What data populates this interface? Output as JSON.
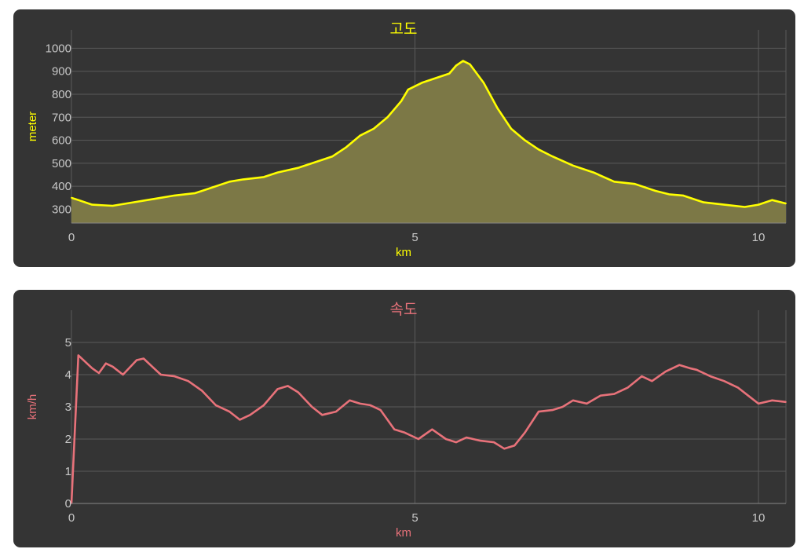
{
  "charts": {
    "elevation": {
      "title": "고도",
      "xlabel": "km",
      "ylabel": "meter",
      "accent": "#ffff00",
      "xticks": [
        "0",
        "5",
        "10"
      ],
      "yticks": [
        "300",
        "400",
        "500",
        "600",
        "700",
        "800",
        "900",
        "1000"
      ]
    },
    "speed": {
      "title": "속도",
      "xlabel": "km",
      "ylabel": "km/h",
      "accent": "#e8727a",
      "xticks": [
        "0",
        "5",
        "10"
      ],
      "yticks": [
        "0",
        "1",
        "2",
        "3",
        "4",
        "5"
      ]
    }
  },
  "chart_data": [
    {
      "type": "area",
      "title": "고도",
      "xlabel": "km",
      "ylabel": "meter",
      "xlim": [
        0,
        10.4
      ],
      "ylim": [
        240,
        1080
      ],
      "grid": true,
      "color": "#ffff00",
      "x": [
        0,
        0.1,
        0.3,
        0.6,
        0.9,
        1.2,
        1.5,
        1.8,
        2.0,
        2.3,
        2.5,
        2.8,
        3.0,
        3.3,
        3.5,
        3.8,
        4.0,
        4.2,
        4.4,
        4.6,
        4.8,
        4.9,
        5.1,
        5.3,
        5.5,
        5.6,
        5.7,
        5.8,
        6.0,
        6.2,
        6.4,
        6.6,
        6.8,
        7.0,
        7.3,
        7.6,
        7.9,
        8.2,
        8.5,
        8.7,
        8.9,
        9.2,
        9.5,
        9.8,
        10.0,
        10.2,
        10.4
      ],
      "y": [
        350,
        340,
        320,
        315,
        330,
        345,
        360,
        370,
        390,
        420,
        430,
        440,
        460,
        480,
        500,
        530,
        570,
        620,
        650,
        700,
        770,
        820,
        850,
        870,
        890,
        925,
        945,
        930,
        850,
        740,
        650,
        600,
        560,
        530,
        490,
        460,
        420,
        410,
        380,
        365,
        360,
        330,
        320,
        310,
        320,
        340,
        325
      ]
    },
    {
      "type": "line",
      "title": "속도",
      "xlabel": "km",
      "ylabel": "km/h",
      "xlim": [
        0,
        10.4
      ],
      "ylim": [
        0,
        6
      ],
      "grid": true,
      "color": "#e8727a",
      "x": [
        0,
        0.1,
        0.3,
        0.4,
        0.5,
        0.6,
        0.75,
        0.95,
        1.05,
        1.2,
        1.3,
        1.5,
        1.7,
        1.9,
        2.1,
        2.3,
        2.45,
        2.6,
        2.8,
        3.0,
        3.15,
        3.3,
        3.5,
        3.65,
        3.85,
        4.05,
        4.2,
        4.35,
        4.5,
        4.7,
        4.85,
        5.05,
        5.25,
        5.45,
        5.6,
        5.75,
        5.95,
        6.15,
        6.3,
        6.45,
        6.6,
        6.8,
        7.0,
        7.15,
        7.3,
        7.5,
        7.7,
        7.9,
        8.1,
        8.3,
        8.45,
        8.65,
        8.85,
        9.0,
        9.1,
        9.3,
        9.5,
        9.7,
        9.85,
        10.0,
        10.2,
        10.4
      ],
      "y": [
        0,
        4.6,
        4.2,
        4.05,
        4.35,
        4.25,
        4.0,
        4.45,
        4.5,
        4.2,
        4.0,
        3.95,
        3.8,
        3.5,
        3.05,
        2.85,
        2.6,
        2.75,
        3.05,
        3.55,
        3.65,
        3.45,
        3.0,
        2.75,
        2.85,
        3.2,
        3.1,
        3.05,
        2.9,
        2.3,
        2.2,
        2.0,
        2.3,
        2.0,
        1.9,
        2.05,
        1.95,
        1.9,
        1.7,
        1.8,
        2.2,
        2.85,
        2.9,
        3.0,
        3.2,
        3.1,
        3.35,
        3.4,
        3.6,
        3.95,
        3.8,
        4.1,
        4.3,
        4.2,
        4.15,
        3.95,
        3.8,
        3.6,
        3.35,
        3.1,
        3.2,
        3.15
      ]
    }
  ]
}
